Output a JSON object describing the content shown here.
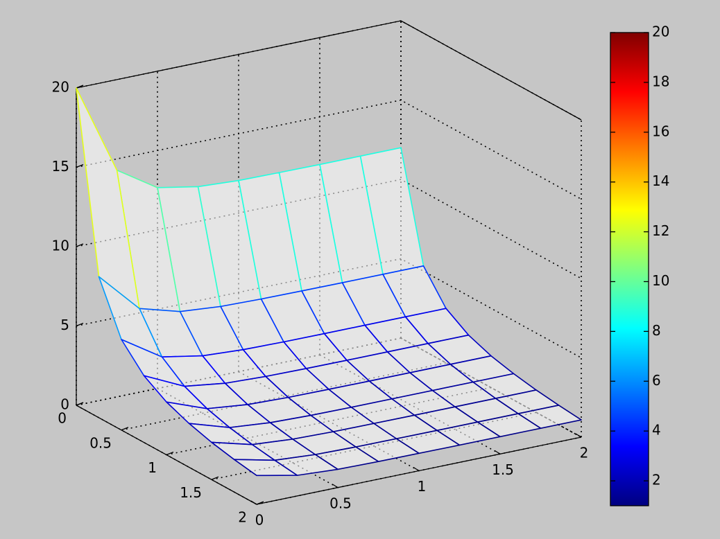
{
  "chart_data": {
    "type": "mesh",
    "x": [
      0,
      0.25,
      0.5,
      0.75,
      1,
      1.25,
      1.5,
      1.75,
      2
    ],
    "y": [
      0,
      0.25,
      0.5,
      0.75,
      1,
      1.25,
      1.5,
      1.75,
      2
    ],
    "z": [
      [
        20,
        14.29,
        12.66,
        12.19,
        12.05,
        12.02,
        12,
        12,
        12
      ],
      [
        8.89,
        6.35,
        5.63,
        5.42,
        5.36,
        5.34,
        5.33,
        5.33,
        5.33
      ],
      [
        5.71,
        4.08,
        3.62,
        3.48,
        3.44,
        3.43,
        3.43,
        3.43,
        3.43
      ],
      [
        4.21,
        3.01,
        2.67,
        2.57,
        2.54,
        2.53,
        2.53,
        2.53,
        2.53
      ],
      [
        3.33,
        2.38,
        2.11,
        2.03,
        2.01,
        2,
        2,
        2,
        2
      ],
      [
        2.76,
        1.97,
        1.75,
        1.68,
        1.66,
        1.66,
        1.66,
        1.66,
        1.66
      ],
      [
        2.35,
        1.68,
        1.49,
        1.43,
        1.42,
        1.41,
        1.41,
        1.41,
        1.41
      ],
      [
        2.05,
        1.47,
        1.3,
        1.25,
        1.24,
        1.23,
        1.23,
        1.23,
        1.23
      ],
      [
        1.82,
        1.3,
        1.15,
        1.11,
        1.1,
        1.09,
        1.09,
        1.09,
        1.09
      ]
    ],
    "xlim": [
      0,
      2
    ],
    "xticks": [
      0,
      0.5,
      1,
      1.5,
      2
    ],
    "ylim": [
      0,
      2
    ],
    "yticks": [
      0,
      0.5,
      1,
      1.5,
      2
    ],
    "zlim": [
      0,
      20
    ],
    "zticks": [
      0,
      5,
      10,
      15,
      20
    ],
    "clim": [
      1,
      20
    ],
    "cticks": [
      2,
      4,
      6,
      8,
      10,
      12,
      14,
      16,
      18,
      20
    ],
    "colormap": "jet",
    "grid": true
  }
}
